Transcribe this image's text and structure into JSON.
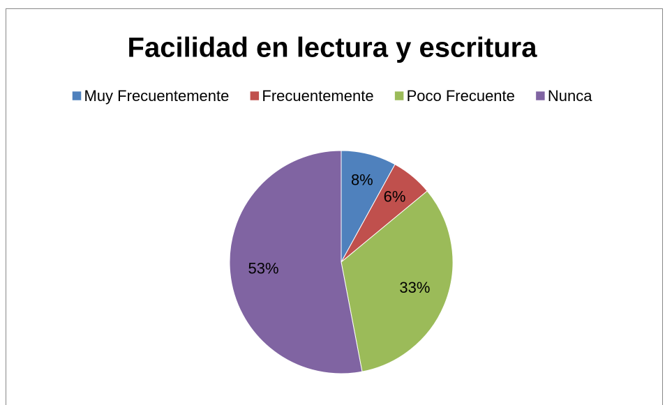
{
  "chart_data": {
    "type": "pie",
    "title": "Facilidad en lectura y escritura",
    "categories": [
      "Muy Frecuentemente",
      "Frecuentemente",
      "Poco Frecuente",
      "Nunca"
    ],
    "values": [
      8,
      6,
      33,
      53
    ],
    "value_labels": [
      "8%",
      "6%",
      "33%",
      "53%"
    ],
    "colors": [
      "#4f81bd",
      "#c0504d",
      "#9bbb59",
      "#8064a2"
    ],
    "legend": "top"
  }
}
